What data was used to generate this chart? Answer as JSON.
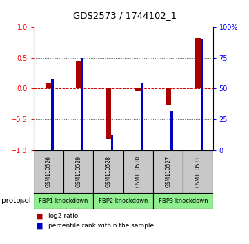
{
  "title": "GDS2573 / 1744102_1",
  "samples": [
    "GSM110526",
    "GSM110529",
    "GSM110528",
    "GSM110530",
    "GSM110527",
    "GSM110531"
  ],
  "log2_ratio": [
    0.08,
    0.44,
    -0.82,
    -0.04,
    -0.28,
    0.82
  ],
  "percentile_rank_pct": [
    58,
    75,
    12,
    54,
    32,
    90
  ],
  "ylim_left": [
    -1,
    1
  ],
  "ylim_right": [
    0,
    100
  ],
  "left_ticks": [
    -1,
    -0.5,
    0,
    0.5,
    1
  ],
  "right_ticks": [
    0,
    25,
    50,
    75,
    100
  ],
  "bar_color_red": "#AA0000",
  "bar_color_blue": "#0000CC",
  "sample_box_color": "#C8C8C8",
  "protocol_colors": [
    "#90EE90",
    "#90EE90",
    "#90EE90"
  ],
  "dotted_line_color": "#555555",
  "zero_line_color": "#CC0000",
  "protocol_labels": [
    "FBP1 knockdown",
    "FBP2 knockdown",
    "FBP3 knockdown"
  ],
  "red_bar_width": 0.18,
  "blue_bar_width": 0.08
}
